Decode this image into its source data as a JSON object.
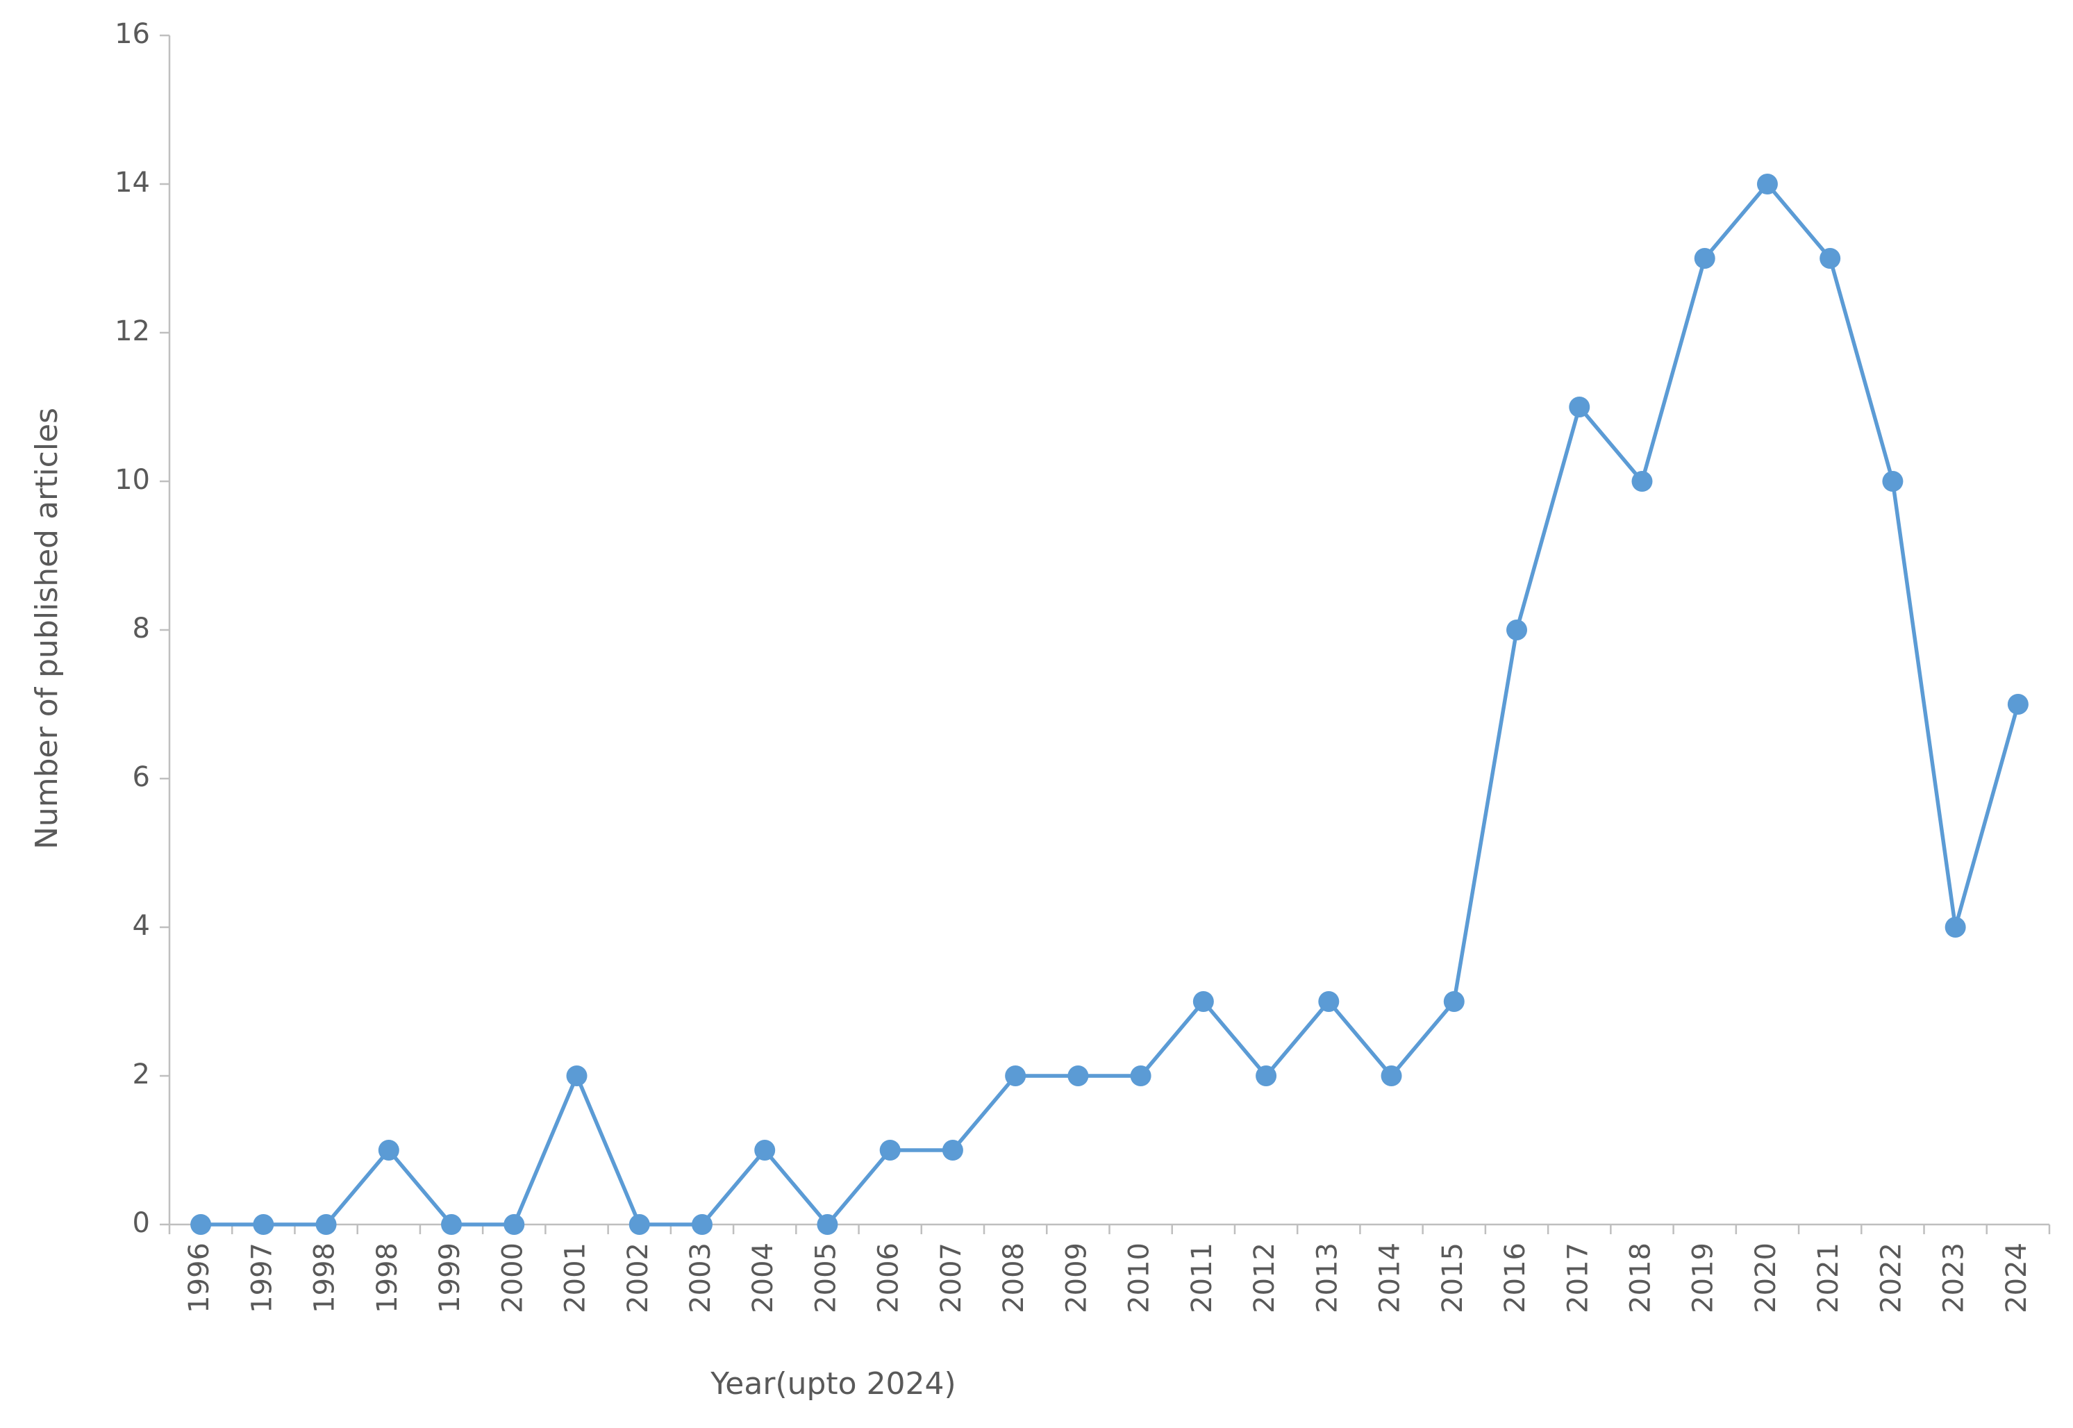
{
  "chart_data": {
    "type": "line",
    "x_label": "Year(upto 2024)",
    "y_label": "Number of published articles",
    "categories": [
      "1996",
      "1997",
      "1998",
      "1998",
      "1999",
      "2000",
      "2001",
      "2002",
      "2003",
      "2004",
      "2005",
      "2006",
      "2007",
      "2008",
      "2009",
      "2010",
      "2011",
      "2012",
      "2013",
      "2014",
      "2015",
      "2016",
      "2017",
      "2018",
      "2019",
      "2020",
      "2021",
      "2022",
      "2023",
      "2024"
    ],
    "values": [
      0,
      0,
      0,
      1,
      0,
      0,
      2,
      0,
      0,
      1,
      0,
      1,
      1,
      2,
      2,
      2,
      3,
      2,
      3,
      2,
      3,
      8,
      11,
      10,
      13,
      14,
      13,
      10,
      4,
      7
    ],
    "color": "#5b9bd5",
    "ylim": [
      0,
      16
    ],
    "yticks": [
      0,
      2,
      4,
      6,
      8,
      10,
      12,
      14,
      16
    ],
    "grid": false
  }
}
